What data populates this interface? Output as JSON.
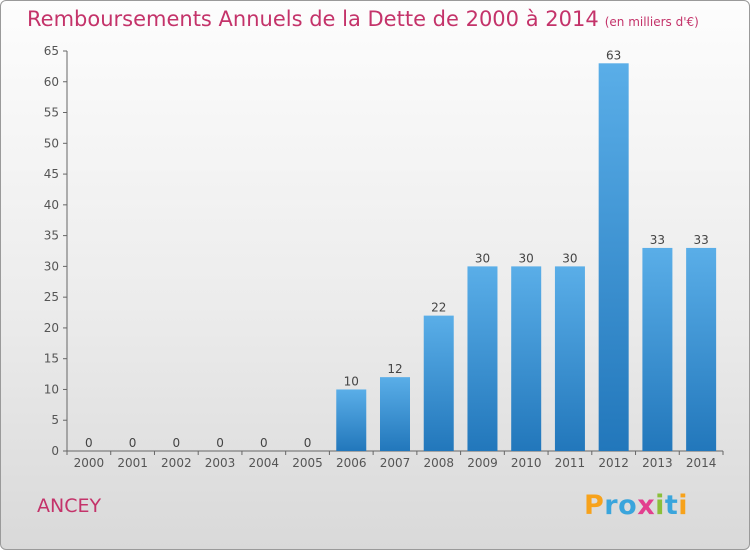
{
  "title": "Remboursements Annuels de la Dette de 2000 à 2014",
  "subtitle": "(en milliers d'€)",
  "commune": "ANCEY",
  "logo": {
    "letters": [
      "P",
      "r",
      "o",
      "x",
      "i",
      "t",
      "i"
    ],
    "colors": [
      "#f7a21b",
      "#3aa5dc",
      "#3aa5dc",
      "#e23f8e",
      "#8bbf3a",
      "#3aa5dc",
      "#f7a21b"
    ]
  },
  "colors": {
    "title": "#c4336a",
    "bar_top": "#5aaee8",
    "bar_bottom": "#2277bb"
  },
  "chart_data": {
    "type": "bar",
    "title": "Remboursements Annuels de la Dette de 2000 à 2014",
    "subtitle": "(en milliers d'€)",
    "categories": [
      "2000",
      "2001",
      "2002",
      "2003",
      "2004",
      "2005",
      "2006",
      "2007",
      "2008",
      "2009",
      "2010",
      "2011",
      "2012",
      "2013",
      "2014"
    ],
    "values": [
      0,
      0,
      0,
      0,
      0,
      0,
      10,
      12,
      22,
      30,
      30,
      30,
      63,
      33,
      33
    ],
    "yticks": [
      0,
      5,
      10,
      15,
      20,
      25,
      30,
      35,
      40,
      45,
      50,
      55,
      60,
      65
    ],
    "ylim": [
      0,
      65
    ],
    "grid": false,
    "legend": "none"
  }
}
